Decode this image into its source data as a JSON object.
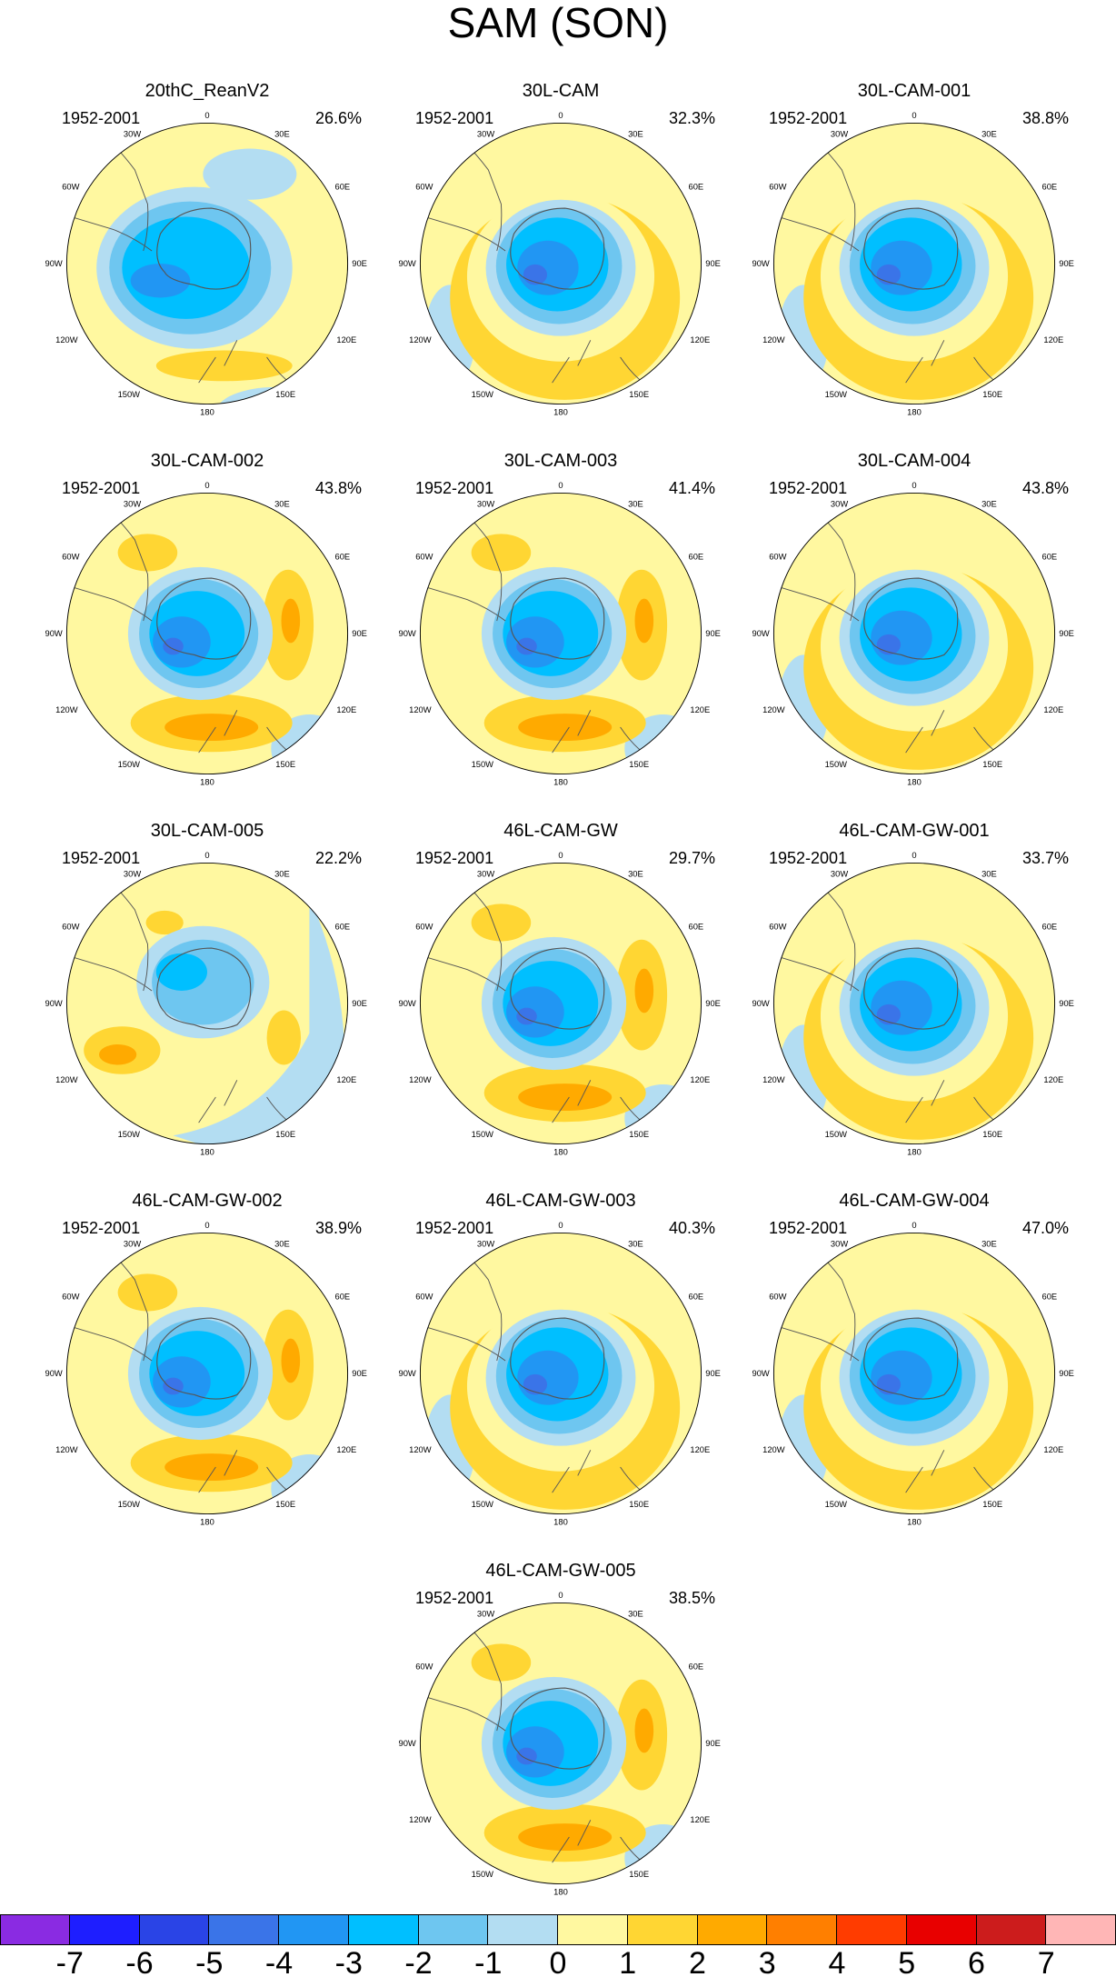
{
  "figure": {
    "title": "SAM (SON)"
  },
  "period_label": "1952-2001",
  "longitude_labels": {
    "top": "0",
    "e30": "30E",
    "e60": "60E",
    "e90": "90E",
    "e120": "120E",
    "e150": "150E",
    "bottom": "180",
    "w150": "150W",
    "w120": "120W",
    "w90": "90W",
    "w60": "60W",
    "w30": "30W"
  },
  "panels": [
    {
      "name": "20thC_ReanV2",
      "variance": "26.6%",
      "pattern": "rean"
    },
    {
      "name": "30L-CAM",
      "variance": "32.3%",
      "pattern": "ring"
    },
    {
      "name": "30L-CAM-001",
      "variance": "38.8%",
      "pattern": "ring"
    },
    {
      "name": "30L-CAM-002",
      "variance": "43.8%",
      "pattern": "wave"
    },
    {
      "name": "30L-CAM-003",
      "variance": "41.4%",
      "pattern": "wave"
    },
    {
      "name": "30L-CAM-004",
      "variance": "43.8%",
      "pattern": "ring"
    },
    {
      "name": "30L-CAM-005",
      "variance": "22.2%",
      "pattern": "weak"
    },
    {
      "name": "46L-CAM-GW",
      "variance": "29.7%",
      "pattern": "wave"
    },
    {
      "name": "46L-CAM-GW-001",
      "variance": "33.7%",
      "pattern": "ring"
    },
    {
      "name": "46L-CAM-GW-002",
      "variance": "38.9%",
      "pattern": "wave"
    },
    {
      "name": "46L-CAM-GW-003",
      "variance": "40.3%",
      "pattern": "ring"
    },
    {
      "name": "46L-CAM-GW-004",
      "variance": "47.0%",
      "pattern": "ring"
    },
    {
      "name": "46L-CAM-GW-005",
      "variance": "38.5%",
      "pattern": "wave"
    }
  ],
  "colorbar": {
    "labels": [
      "-7",
      "-6",
      "-5",
      "-4",
      "-3",
      "-2",
      "-1",
      "0",
      "1",
      "2",
      "3",
      "4",
      "5",
      "6",
      "7"
    ],
    "colors": [
      "#8a2be2",
      "#1e1eff",
      "#2a44e6",
      "#3a74e8",
      "#2196f3",
      "#00bfff",
      "#6ec6f0",
      "#b3ddf2",
      "#fff8a0",
      "#ffd633",
      "#ffaa00",
      "#ff7f00",
      "#ff3c00",
      "#e80000",
      "#cc1c1c",
      "#ffb6b6"
    ]
  },
  "palette": {
    "neg4": "#3a74e8",
    "neg3": "#2196f3",
    "neg2": "#00bfff",
    "neg1": "#6ec6f0",
    "neg0": "#b3ddf2",
    "pos0": "#fff8a0",
    "pos1": "#ffd633",
    "pos2": "#ffaa00",
    "coast": "#555555"
  }
}
